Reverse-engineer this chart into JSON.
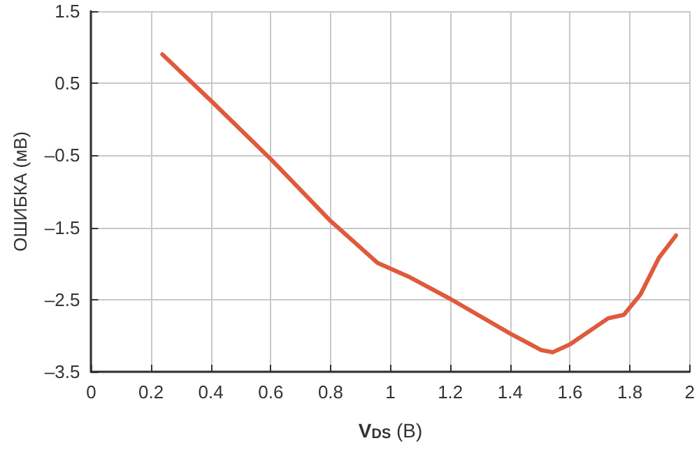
{
  "chart_data": {
    "type": "line",
    "xlabel": "V$_{DS}$ (В)",
    "ylabel": "ОШИБКА (мВ)",
    "x": [
      0.238,
      0.4,
      0.6,
      0.8,
      0.957,
      1.065,
      1.2,
      1.4,
      1.504,
      1.542,
      1.6,
      1.727,
      1.78,
      1.835,
      1.897,
      1.954
    ],
    "series": [
      {
        "color": "#df5a3c",
        "values": [
          0.9,
          0.26,
          -0.55,
          -1.41,
          -1.99,
          -2.19,
          -2.49,
          -2.97,
          -3.2,
          -3.23,
          -3.12,
          -2.76,
          -2.71,
          -2.43,
          -1.92,
          -1.61
        ]
      }
    ],
    "xlim": [
      0,
      2
    ],
    "xticks": [
      0,
      0.2,
      0.4,
      0.6,
      0.8,
      1,
      1.2,
      1.4,
      1.6,
      1.8,
      2
    ],
    "ylim": [
      -3.5,
      1.5
    ],
    "yticks": [
      {
        "value": -3.5,
        "label": "–3.5"
      },
      {
        "value": -2.5,
        "label": "–2.5"
      },
      {
        "value": -1.5,
        "label": "–1.5"
      },
      {
        "value": -0.5,
        "label": "–0.5"
      },
      0.5,
      1.5
    ],
    "grid": true,
    "marker": "none",
    "line_style": "solid"
  }
}
